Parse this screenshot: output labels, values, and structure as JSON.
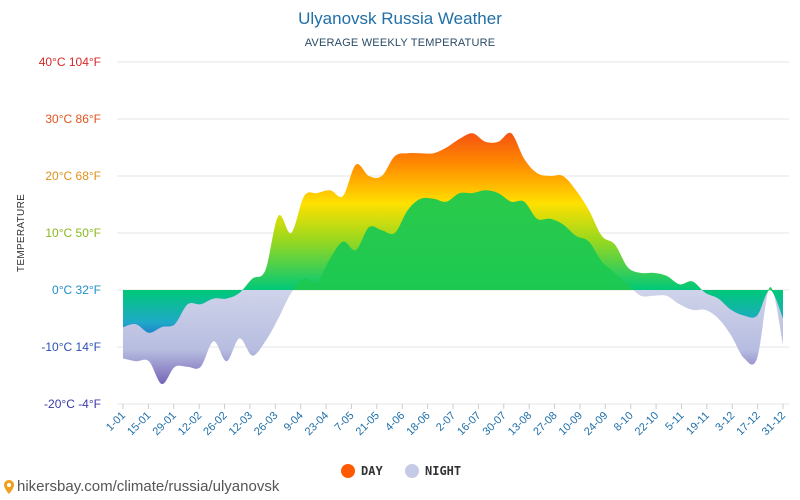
{
  "header": {
    "title": "Ulyanovsk Russia Weather",
    "subtitle": "AVERAGE WEEKLY TEMPERATURE"
  },
  "footer": {
    "url": "hikersbay.com/climate/russia/ulyanovsk"
  },
  "chart_data": {
    "type": "area",
    "ylabel": "TEMPERATURE",
    "ylim": [
      -20,
      40
    ],
    "y_ticks": [
      {
        "value": 40,
        "label": "40°C 104°F",
        "color": "#d62828"
      },
      {
        "value": 30,
        "label": "30°C 86°F",
        "color": "#e0531d"
      },
      {
        "value": 20,
        "label": "20°C 68°F",
        "color": "#e0901d"
      },
      {
        "value": 10,
        "label": "10°C 50°F",
        "color": "#8ab81e"
      },
      {
        "value": 0,
        "label": "0°C 32°F",
        "color": "#1f8ec9"
      },
      {
        "value": -10,
        "label": "-10°C 14°F",
        "color": "#2d4fb5"
      },
      {
        "value": -20,
        "label": "-20°C -4°F",
        "color": "#3a3aa8"
      }
    ],
    "x_ticks": [
      "1-01",
      "15-01",
      "29-01",
      "12-02",
      "26-02",
      "12-03",
      "26-03",
      "9-04",
      "23-04",
      "7-05",
      "21-05",
      "4-06",
      "18-06",
      "2-07",
      "16-07",
      "30-07",
      "13-08",
      "27-08",
      "10-09",
      "24-09",
      "8-10",
      "22-10",
      "5-11",
      "19-11",
      "3-12",
      "17-12",
      "31-12"
    ],
    "grid": true,
    "legend_position": "bottom",
    "series": [
      {
        "name": "DAY",
        "color": "#ff5a00",
        "values": [
          -6.5,
          -6.0,
          -7.5,
          -6.5,
          -6.0,
          -2.5,
          -2.5,
          -1.5,
          -1.5,
          -0.5,
          2.0,
          3.5,
          13.0,
          10.0,
          16.5,
          17.0,
          17.5,
          16.5,
          22.0,
          20.0,
          20.0,
          23.5,
          24.0,
          24.0,
          24.0,
          25.0,
          26.5,
          27.5,
          26.0,
          26.0,
          27.5,
          23.0,
          20.5,
          20.0,
          20.0,
          17.5,
          14.0,
          9.5,
          8.0,
          4.0,
          3.0,
          3.0,
          2.5,
          1.0,
          1.5,
          -0.5,
          -1.5,
          -3.5,
          -4.5,
          -4.5,
          0.0,
          -5.0
        ]
      },
      {
        "name": "NIGHT",
        "color": "#c5cbe6",
        "values": [
          -12.0,
          -12.5,
          -12.5,
          -16.5,
          -13.5,
          -13.5,
          -13.5,
          -9.0,
          -12.5,
          -8.5,
          -11.5,
          -9.0,
          -5.0,
          -0.5,
          2.0,
          1.5,
          5.5,
          8.5,
          7.0,
          11.0,
          10.5,
          10.0,
          14.0,
          16.0,
          16.0,
          15.5,
          17.0,
          17.0,
          17.5,
          17.0,
          15.5,
          15.5,
          12.5,
          12.5,
          11.5,
          9.5,
          8.5,
          5.0,
          3.0,
          1.0,
          -1.0,
          -1.0,
          -1.0,
          -2.5,
          -3.5,
          -3.5,
          -5.0,
          -8.0,
          -12.0,
          -12.0,
          0.5,
          -9.5
        ]
      }
    ]
  }
}
